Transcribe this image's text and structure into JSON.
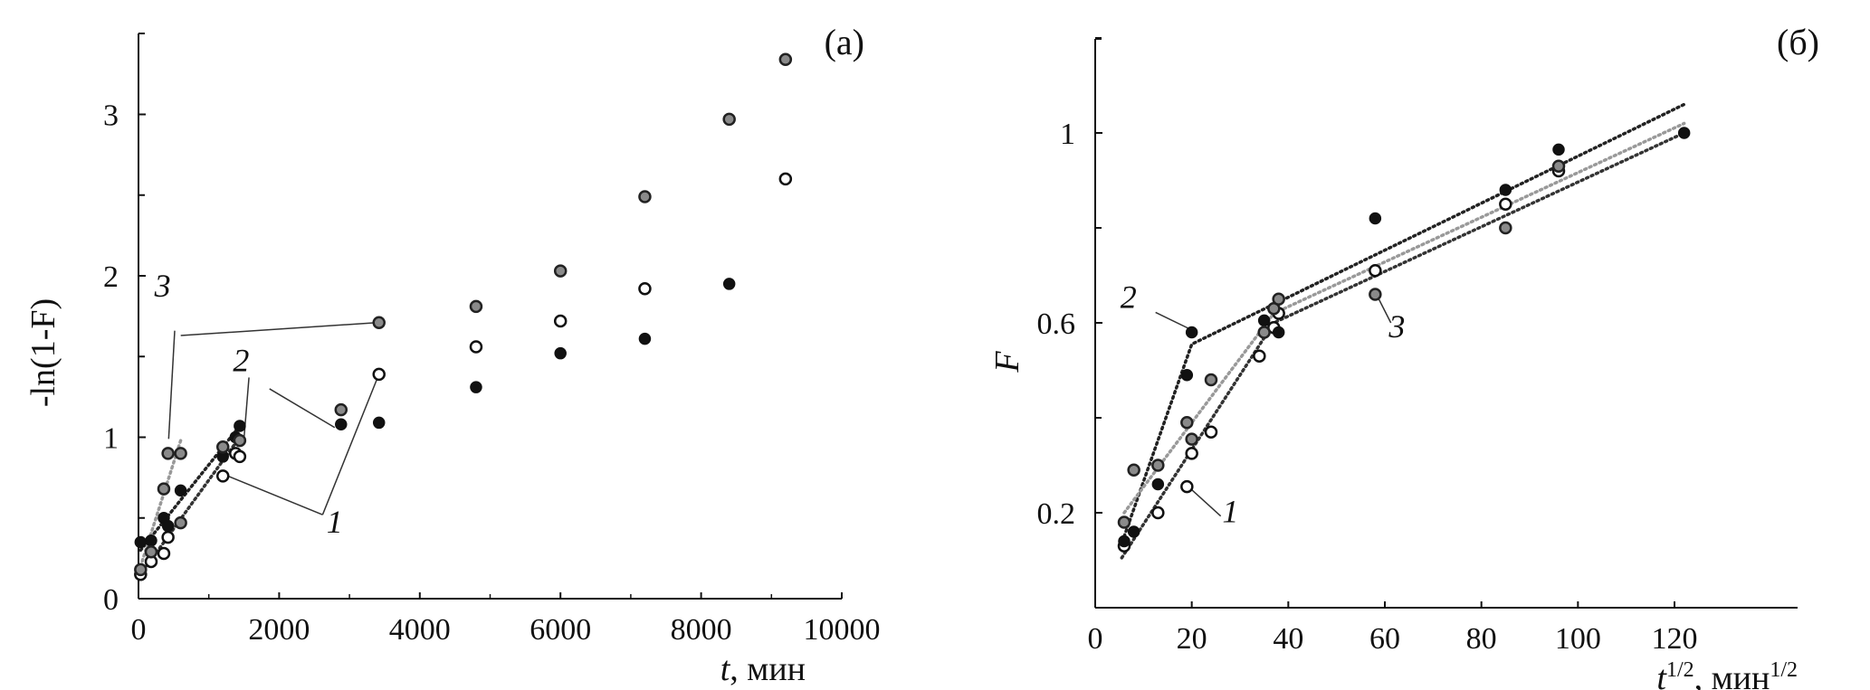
{
  "chart_data": [
    {
      "panel_label": "(a)",
      "type": "scatter",
      "xlabel_var": "t",
      "xlabel_unit": ", мин",
      "ylabel": "-ln(1-F)",
      "xlim": [
        0,
        10000
      ],
      "ylim": [
        0,
        3.5
      ],
      "xticks": [
        0,
        2000,
        4000,
        6000,
        8000,
        10000
      ],
      "yticks": [
        0,
        1,
        2,
        3
      ],
      "grid": false,
      "colors": {
        "1": "#ffffff",
        "2": "#111111",
        "3": "#8a8a8a"
      },
      "series": [
        {
          "name": "1",
          "marker": "open",
          "points": [
            [
              30,
              0.15
            ],
            [
              180,
              0.23
            ],
            [
              360,
              0.28
            ],
            [
              420,
              0.38
            ],
            [
              1200,
              0.76
            ],
            [
              1380,
              0.9
            ],
            [
              1440,
              0.88
            ],
            [
              3420,
              1.39
            ],
            [
              4800,
              1.56
            ],
            [
              6000,
              1.72
            ],
            [
              7200,
              1.92
            ],
            [
              9200,
              2.6
            ]
          ],
          "fit": [
            [
              30,
              0.15
            ],
            [
              1440,
              1.0
            ]
          ]
        },
        {
          "name": "2",
          "marker": "filled",
          "points": [
            [
              30,
              0.35
            ],
            [
              180,
              0.36
            ],
            [
              360,
              0.5
            ],
            [
              420,
              0.45
            ],
            [
              600,
              0.67
            ],
            [
              1200,
              0.88
            ],
            [
              1380,
              1.0
            ],
            [
              1440,
              1.07
            ],
            [
              2880,
              1.08
            ],
            [
              3420,
              1.09
            ],
            [
              4800,
              1.31
            ],
            [
              6000,
              1.52
            ],
            [
              7200,
              1.61
            ],
            [
              8400,
              1.95
            ]
          ],
          "fit": [
            [
              30,
              0.3
            ],
            [
              1440,
              1.07
            ]
          ]
        },
        {
          "name": "3",
          "marker": "gray",
          "points": [
            [
              30,
              0.18
            ],
            [
              180,
              0.29
            ],
            [
              360,
              0.68
            ],
            [
              420,
              0.9
            ],
            [
              600,
              0.9
            ],
            [
              600,
              0.47
            ],
            [
              1200,
              0.94
            ],
            [
              1440,
              0.98
            ],
            [
              2880,
              1.17
            ],
            [
              3420,
              1.71
            ],
            [
              4800,
              1.81
            ],
            [
              6000,
              2.03
            ],
            [
              7200,
              2.49
            ],
            [
              8400,
              2.97
            ],
            [
              9200,
              3.34
            ]
          ],
          "fit": [
            [
              30,
              0.2
            ],
            [
              600,
              0.98
            ]
          ]
        }
      ],
      "annotations": [
        {
          "text": "3",
          "at": [
            343,
            1.87
          ],
          "leaders": [
            [
              [
                515,
                1.66
              ],
              [
                429,
                0.99
              ]
            ],
            [
              [
                601,
                1.63
              ],
              [
                3391,
                1.71
              ]
            ]
          ]
        },
        {
          "text": "2",
          "at": [
            1459,
            1.41
          ],
          "leaders": [
            [
              [
                1571,
                1.37
              ],
              [
                1502,
                1.0
              ]
            ],
            [
              [
                1863,
                1.3
              ],
              [
                2790,
                1.06
              ]
            ]
          ]
        },
        {
          "text": "1",
          "at": [
            2790,
            0.41
          ],
          "leaders": [
            [
              [
                2618,
                0.52
              ],
              [
                1270,
                0.76
              ]
            ],
            [
              [
                2618,
                0.52
              ],
              [
                3391,
                1.36
              ]
            ]
          ]
        }
      ]
    },
    {
      "panel_label": "(б)",
      "type": "scatter",
      "xlabel_var": "t",
      "xlabel_sup": "1/2",
      "xlabel_unit": ", мин",
      "xlabel_unit_sup": "1/2",
      "ylabel": "F",
      "xlim": [
        0,
        145
      ],
      "ylim": [
        0,
        1.2
      ],
      "xticks": [
        0,
        20,
        40,
        60,
        80,
        100,
        120
      ],
      "yticks": [
        0.2,
        0.6,
        1
      ],
      "yticks_minor": [
        0.4,
        0.8,
        1.2
      ],
      "grid": false,
      "series": [
        {
          "name": "1",
          "marker": "open",
          "points": [
            [
              6,
              0.13
            ],
            [
              13,
              0.2
            ],
            [
              19,
              0.255
            ],
            [
              20,
              0.325
            ],
            [
              24,
              0.37
            ],
            [
              34,
              0.53
            ],
            [
              37,
              0.59
            ],
            [
              38,
              0.62
            ],
            [
              58,
              0.71
            ],
            [
              85,
              0.85
            ],
            [
              96,
              0.92
            ]
          ],
          "fit": [
            [
              5.5,
              0.105
            ],
            [
              37,
              0.6
            ],
            [
              122,
              1.0
            ]
          ]
        },
        {
          "name": "2",
          "marker": "filled",
          "points": [
            [
              6,
              0.14
            ],
            [
              8,
              0.16
            ],
            [
              13,
              0.26
            ],
            [
              19,
              0.49
            ],
            [
              20,
              0.58
            ],
            [
              35,
              0.605
            ],
            [
              38,
              0.58
            ],
            [
              58,
              0.82
            ],
            [
              85,
              0.88
            ],
            [
              96,
              0.965
            ],
            [
              122,
              1.0
            ]
          ],
          "fit": [
            [
              6,
              0.15
            ],
            [
              20,
              0.555
            ],
            [
              122,
              1.06
            ]
          ]
        },
        {
          "name": "3",
          "marker": "gray",
          "points": [
            [
              6,
              0.18
            ],
            [
              8,
              0.29
            ],
            [
              13,
              0.3
            ],
            [
              19,
              0.39
            ],
            [
              20,
              0.355
            ],
            [
              24,
              0.48
            ],
            [
              35,
              0.58
            ],
            [
              37,
              0.63
            ],
            [
              38,
              0.65
            ],
            [
              58,
              0.66
            ],
            [
              85,
              0.8
            ],
            [
              96,
              0.93
            ]
          ],
          "fit": [
            [
              6,
              0.2
            ],
            [
              37,
              0.62
            ],
            [
              122,
              1.02
            ]
          ]
        }
      ],
      "annotations": [
        {
          "text": "2",
          "at": [
            6.9,
            0.631
          ],
          "leaders": [
            [
              [
                12.5,
                0.622
              ],
              [
                20,
                0.585
              ]
            ]
          ]
        },
        {
          "text": "1",
          "at": [
            28,
            0.18
          ],
          "leaders": [
            [
              [
                19.4,
                0.254
              ],
              [
                26,
                0.193
              ]
            ]
          ]
        },
        {
          "text": "3",
          "at": [
            62.5,
            0.57
          ],
          "leaders": [
            [
              [
                58.75,
                0.65
              ],
              [
                61.25,
                0.6
              ]
            ]
          ]
        }
      ]
    }
  ]
}
